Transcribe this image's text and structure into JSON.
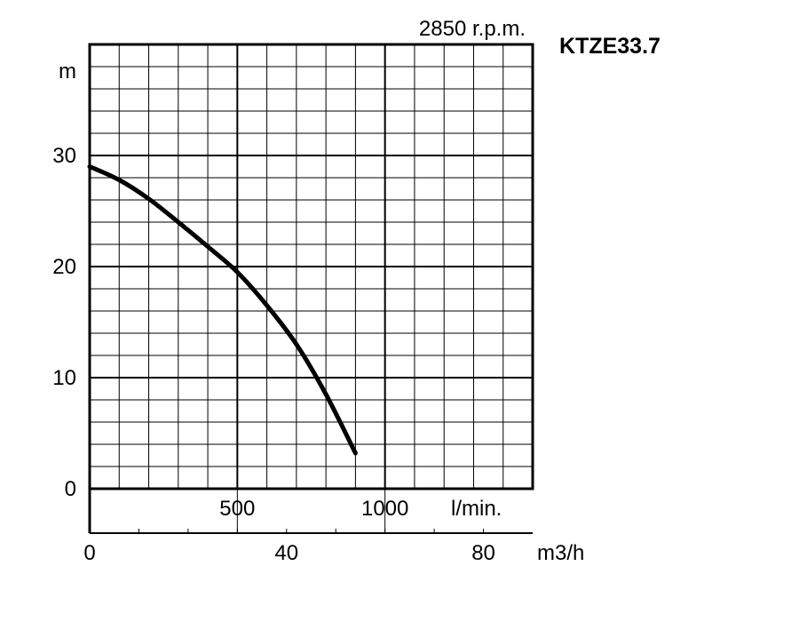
{
  "chart_data": {
    "type": "line",
    "title": "KTZE33.7",
    "subtitle": "2850 r.p.m.",
    "ylabel": "m",
    "xlabel_primary": "l/min.",
    "xlabel_secondary": "m3/h",
    "ylim": [
      0,
      40
    ],
    "xlim_lmin": [
      0,
      1500
    ],
    "xlim_m3h": [
      0,
      90
    ],
    "yticks": [
      {
        "value": 0,
        "label": "0"
      },
      {
        "value": 10,
        "label": "10"
      },
      {
        "value": 20,
        "label": "20"
      },
      {
        "value": 30,
        "label": "30"
      }
    ],
    "xticks_lmin": [
      {
        "value": 500,
        "label": "500"
      },
      {
        "value": 1000,
        "label": "1000"
      }
    ],
    "xticks_m3h": [
      {
        "value": 0,
        "label": "0"
      },
      {
        "value": 40,
        "label": "40"
      },
      {
        "value": 80,
        "label": "80"
      }
    ],
    "grid": true,
    "series": [
      {
        "x_lmin": [
          0,
          100,
          200,
          300,
          400,
          500,
          600,
          700,
          800,
          900
        ],
        "y_m": [
          29,
          27.8,
          26.1,
          24,
          21.8,
          19.5,
          16.5,
          13,
          8.5,
          3.2
        ]
      }
    ]
  }
}
